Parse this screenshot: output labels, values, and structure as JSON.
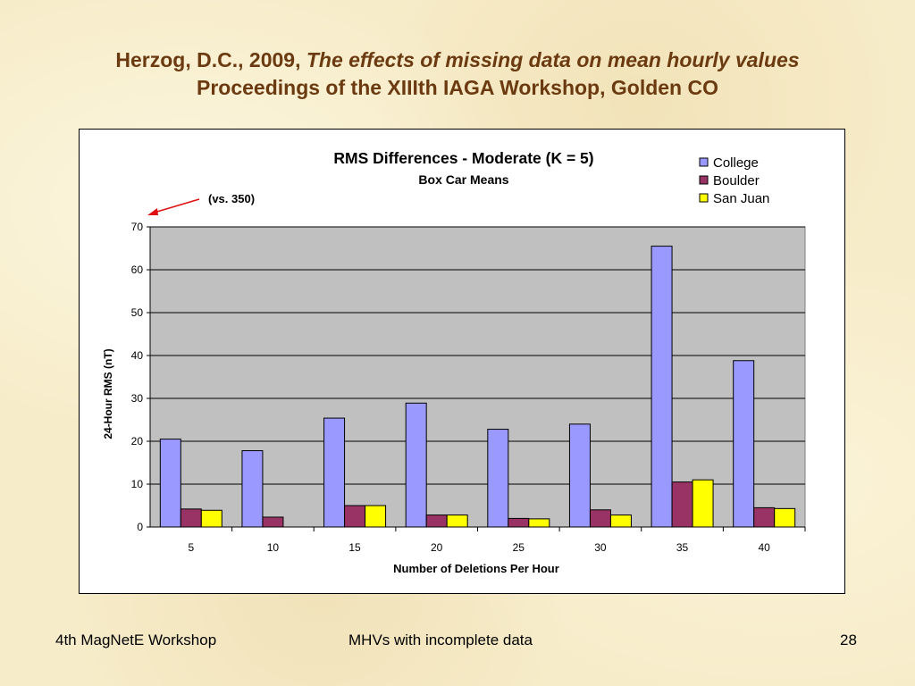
{
  "slide": {
    "title_line1_plain": "Herzog, D.C., 2009, ",
    "title_line1_italic": "The effects of missing data on mean hourly values",
    "title_line2": "Proceedings of the XIIIth IAGA Workshop, Golden CO"
  },
  "footer": {
    "left": "4th MagNetE Workshop",
    "center": "MHVs with incomplete data",
    "right": "28"
  },
  "annotation": {
    "text": "(vs. 350)",
    "arrow_color": "#e01010"
  },
  "chart_data": {
    "type": "bar",
    "title": "RMS Differences - Moderate (K = 5)",
    "subtitle": "Box Car Means",
    "xlabel": "Number of Deletions Per Hour",
    "ylabel": "24-Hour RMS (nT)",
    "ylim": [
      0,
      70
    ],
    "yticks": [
      0,
      10,
      20,
      30,
      40,
      50,
      60,
      70
    ],
    "categories": [
      "5",
      "10",
      "15",
      "20",
      "25",
      "30",
      "35",
      "40"
    ],
    "grid": true,
    "legend_position": "top-right",
    "plot_background": "#c0c0c0",
    "series": [
      {
        "name": "College",
        "color": "#9999ff",
        "values": [
          20.5,
          17.8,
          25.4,
          28.9,
          22.8,
          24.0,
          65.5,
          38.8
        ]
      },
      {
        "name": "Boulder",
        "color": "#993366",
        "values": [
          4.2,
          2.3,
          5.0,
          2.8,
          2.0,
          4.0,
          10.5,
          4.5
        ]
      },
      {
        "name": "San Juan",
        "color": "#ffff00",
        "values": [
          3.9,
          0,
          5.0,
          2.8,
          1.9,
          2.8,
          11.0,
          4.3
        ]
      }
    ]
  }
}
